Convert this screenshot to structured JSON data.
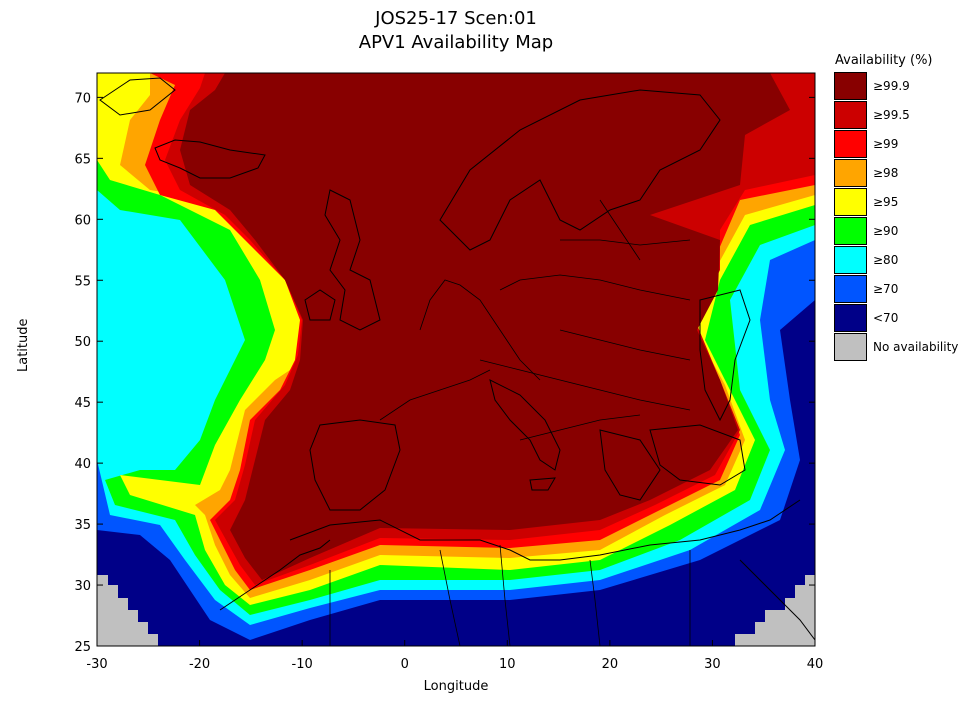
{
  "title": "JOS25-17 Scen:01",
  "subtitle": "APV1 Availability Map",
  "xaxis": {
    "label": "Longitude",
    "range": [
      -30,
      40
    ],
    "ticks": [
      "-30",
      "-20",
      "-10",
      "0",
      "10",
      "20",
      "30",
      "40"
    ]
  },
  "yaxis": {
    "label": "Latitude",
    "range": [
      25,
      72
    ],
    "ticks": [
      "25",
      "30",
      "35",
      "40",
      "45",
      "50",
      "55",
      "60",
      "65",
      "70"
    ]
  },
  "legend": {
    "title": "Availability (%)",
    "items": [
      {
        "label": "≥99.9",
        "color": "#880000"
      },
      {
        "label": "≥99.5",
        "color": "#cc0000"
      },
      {
        "label": "≥99",
        "color": "#ff0000"
      },
      {
        "label": "≥98",
        "color": "#ffa500"
      },
      {
        "label": "≥95",
        "color": "#ffff00"
      },
      {
        "label": "≥90",
        "color": "#00ff00"
      },
      {
        "label": "≥80",
        "color": "#00ffff"
      },
      {
        "label": "≥70",
        "color": "#0055ff"
      },
      {
        "label": "<70",
        "color": "#000088"
      },
      {
        "label": "No availability",
        "color": "#c0c0c0"
      }
    ]
  }
}
